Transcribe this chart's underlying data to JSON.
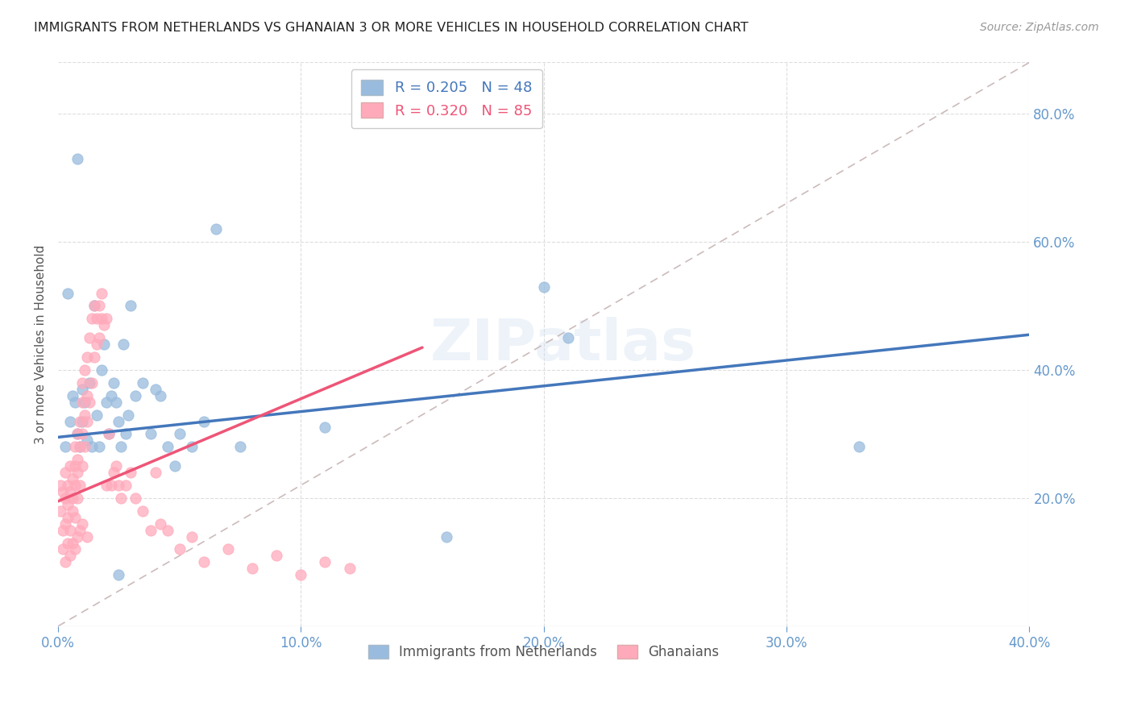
{
  "title": "IMMIGRANTS FROM NETHERLANDS VS GHANAIAN 3 OR MORE VEHICLES IN HOUSEHOLD CORRELATION CHART",
  "source": "Source: ZipAtlas.com",
  "ylabel": "3 or more Vehicles in Household",
  "x_min": 0.0,
  "x_max": 0.4,
  "y_min": 0.0,
  "y_max": 0.88,
  "x_ticks": [
    0.0,
    0.1,
    0.2,
    0.3,
    0.4
  ],
  "y_ticks": [
    0.2,
    0.4,
    0.6,
    0.8
  ],
  "legend1_label": "R = 0.205   N = 48",
  "legend2_label": "R = 0.320   N = 85",
  "legend_bottom1": "Immigrants from Netherlands",
  "legend_bottom2": "Ghanaians",
  "blue_color": "#99BBDD",
  "pink_color": "#FFAABB",
  "blue_line_color": "#4477BB",
  "pink_line_color": "#EE5577",
  "axis_color": "#6699CC",
  "grid_color": "#DDDDDD",
  "ref_line_color": "#CCBBBB",
  "blue_line_x0": 0.0,
  "blue_line_y0": 0.295,
  "blue_line_x1": 0.4,
  "blue_line_y1": 0.455,
  "pink_line_x0": 0.0,
  "pink_line_y0": 0.195,
  "pink_line_x1": 0.15,
  "pink_line_y1": 0.435,
  "blue_scatter_x": [
    0.003,
    0.004,
    0.005,
    0.006,
    0.007,
    0.008,
    0.009,
    0.01,
    0.01,
    0.011,
    0.012,
    0.013,
    0.014,
    0.015,
    0.016,
    0.017,
    0.018,
    0.019,
    0.02,
    0.021,
    0.022,
    0.023,
    0.024,
    0.025,
    0.026,
    0.027,
    0.028,
    0.029,
    0.03,
    0.032,
    0.035,
    0.038,
    0.04,
    0.042,
    0.045,
    0.048,
    0.05,
    0.055,
    0.06,
    0.065,
    0.075,
    0.11,
    0.16,
    0.2,
    0.21,
    0.33,
    0.008,
    0.025
  ],
  "blue_scatter_y": [
    0.28,
    0.52,
    0.32,
    0.36,
    0.35,
    0.3,
    0.28,
    0.32,
    0.37,
    0.35,
    0.29,
    0.38,
    0.28,
    0.5,
    0.33,
    0.28,
    0.4,
    0.44,
    0.35,
    0.3,
    0.36,
    0.38,
    0.35,
    0.32,
    0.28,
    0.44,
    0.3,
    0.33,
    0.5,
    0.36,
    0.38,
    0.3,
    0.37,
    0.36,
    0.28,
    0.25,
    0.3,
    0.28,
    0.32,
    0.62,
    0.28,
    0.31,
    0.14,
    0.53,
    0.45,
    0.28,
    0.73,
    0.08
  ],
  "pink_scatter_x": [
    0.001,
    0.001,
    0.002,
    0.002,
    0.003,
    0.003,
    0.003,
    0.004,
    0.004,
    0.004,
    0.005,
    0.005,
    0.005,
    0.006,
    0.006,
    0.006,
    0.007,
    0.007,
    0.007,
    0.007,
    0.008,
    0.008,
    0.008,
    0.008,
    0.009,
    0.009,
    0.009,
    0.01,
    0.01,
    0.01,
    0.01,
    0.011,
    0.011,
    0.011,
    0.012,
    0.012,
    0.012,
    0.013,
    0.013,
    0.014,
    0.014,
    0.015,
    0.015,
    0.016,
    0.016,
    0.017,
    0.017,
    0.018,
    0.018,
    0.019,
    0.02,
    0.02,
    0.021,
    0.022,
    0.023,
    0.024,
    0.025,
    0.026,
    0.028,
    0.03,
    0.032,
    0.035,
    0.038,
    0.04,
    0.042,
    0.045,
    0.05,
    0.055,
    0.06,
    0.07,
    0.08,
    0.09,
    0.1,
    0.11,
    0.12,
    0.002,
    0.003,
    0.004,
    0.005,
    0.006,
    0.007,
    0.008,
    0.009,
    0.01,
    0.012
  ],
  "pink_scatter_y": [
    0.18,
    0.22,
    0.15,
    0.21,
    0.16,
    0.2,
    0.24,
    0.17,
    0.22,
    0.19,
    0.15,
    0.21,
    0.25,
    0.18,
    0.23,
    0.2,
    0.17,
    0.22,
    0.25,
    0.28,
    0.2,
    0.24,
    0.26,
    0.3,
    0.22,
    0.28,
    0.32,
    0.25,
    0.3,
    0.35,
    0.38,
    0.28,
    0.33,
    0.4,
    0.32,
    0.36,
    0.42,
    0.35,
    0.45,
    0.38,
    0.48,
    0.42,
    0.5,
    0.44,
    0.48,
    0.45,
    0.5,
    0.48,
    0.52,
    0.47,
    0.48,
    0.22,
    0.3,
    0.22,
    0.24,
    0.25,
    0.22,
    0.2,
    0.22,
    0.24,
    0.2,
    0.18,
    0.15,
    0.24,
    0.16,
    0.15,
    0.12,
    0.14,
    0.1,
    0.12,
    0.09,
    0.11,
    0.08,
    0.1,
    0.09,
    0.12,
    0.1,
    0.13,
    0.11,
    0.13,
    0.12,
    0.14,
    0.15,
    0.16,
    0.14
  ]
}
